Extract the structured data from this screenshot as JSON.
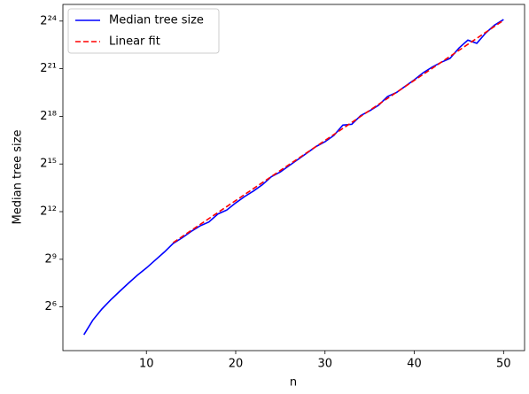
{
  "chart_data": {
    "type": "line",
    "xlabel": "n",
    "ylabel": "Median tree size",
    "xlim": [
      0.65,
      52.35
    ],
    "xticks": [
      10,
      20,
      30,
      40,
      50
    ],
    "ylim": [
      9.5,
      34700000
    ],
    "yscale": "log2",
    "yticks": [
      {
        "value": 64,
        "label": "2⁶"
      },
      {
        "value": 512,
        "label": "2⁹"
      },
      {
        "value": 4096,
        "label": "2¹²"
      },
      {
        "value": 32768,
        "label": "2¹⁵"
      },
      {
        "value": 262144,
        "label": "2¹⁸"
      },
      {
        "value": 2097152,
        "label": "2²¹"
      },
      {
        "value": 16777216,
        "label": "2²⁴"
      }
    ],
    "legend": "upper left",
    "series": [
      {
        "name": "Median tree size",
        "color": "#0000ff",
        "style": "solid",
        "x": [
          3,
          4,
          5,
          6,
          7,
          8,
          9,
          10,
          11,
          12,
          13,
          14,
          15,
          16,
          17,
          18,
          19,
          20,
          21,
          22,
          23,
          24,
          25,
          26,
          27,
          28,
          29,
          30,
          31,
          32,
          33,
          34,
          35,
          36,
          37,
          38,
          39,
          40,
          41,
          42,
          43,
          44,
          45,
          46,
          47,
          48,
          49,
          50
        ],
        "values": [
          19,
          36,
          58,
          87,
          126,
          181,
          256,
          350,
          495,
          699,
          1024,
          1305,
          1722,
          2195,
          2610,
          3691,
          4390,
          5997,
          7913,
          10085,
          13308,
          18820,
          23170,
          30574,
          40341,
          53232,
          70242,
          86475,
          114105,
          179044,
          185364,
          271398,
          334129,
          425853,
          623483,
          741455,
          978374,
          1290892,
          1763496,
          2247728,
          2767192,
          3290432,
          5163609,
          7302703,
          6357407,
          9975733,
          14107959,
          17981820
        ]
      },
      {
        "name": "Linear fit",
        "color": "#ff0000",
        "style": "dashed",
        "x": [
          13,
          50
        ],
        "values": [
          1060,
          17370000
        ]
      }
    ]
  }
}
